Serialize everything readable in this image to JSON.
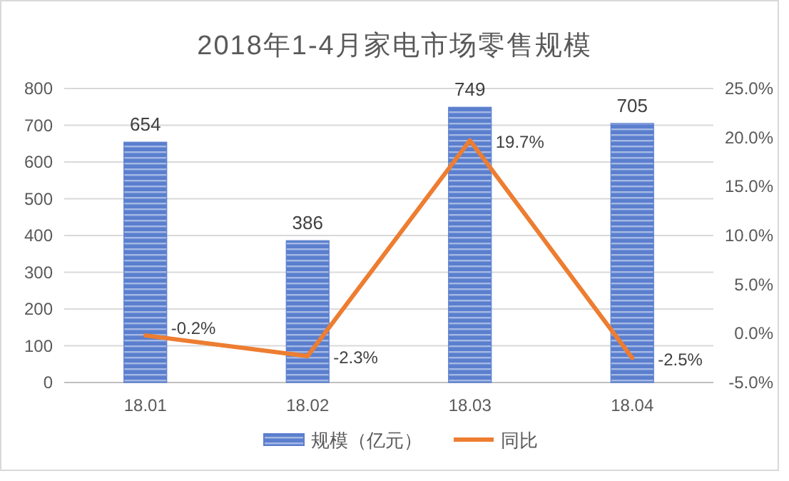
{
  "chart_data": {
    "type": "bar",
    "title": "2018年1-4月家电市场零售规模",
    "categories": [
      "18.01",
      "18.02",
      "18.03",
      "18.04"
    ],
    "series": [
      {
        "name": "规模（亿元）",
        "color": "#5b7fce",
        "values": [
          654,
          386,
          749,
          705
        ],
        "value_labels": [
          "654",
          "386",
          "749",
          "705"
        ]
      },
      {
        "name": "同比",
        "type": "line",
        "axis": "y2",
        "color": "#ed7d31",
        "values": [
          -0.2,
          -2.3,
          19.7,
          -2.5
        ],
        "value_labels": [
          "-0.2%",
          "-2.3%",
          "19.7%",
          "-2.5%"
        ]
      }
    ],
    "ylim": [
      0,
      800
    ],
    "yticks": [
      0,
      100,
      200,
      300,
      400,
      500,
      600,
      700,
      800
    ],
    "y2lim": [
      -5,
      25
    ],
    "y2ticks": [
      {
        "value": -5,
        "label": "-5.0%"
      },
      {
        "value": 0,
        "label": "0.0%"
      },
      {
        "value": 5,
        "label": "5.0%"
      },
      {
        "value": 10,
        "label": "10.0%"
      },
      {
        "value": 15,
        "label": "15.0%"
      },
      {
        "value": 20,
        "label": "20.0%"
      },
      {
        "value": 25,
        "label": "25.0%"
      }
    ],
    "grid": "y",
    "legend": "bottom",
    "marker": "none",
    "line_style": "solid"
  }
}
